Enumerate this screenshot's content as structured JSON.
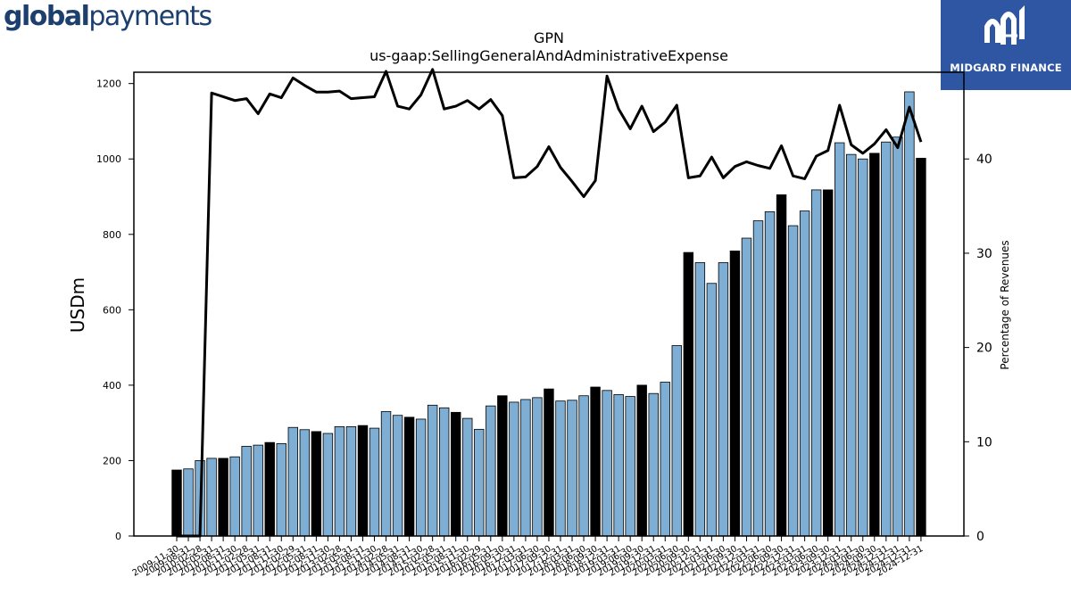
{
  "branding": {
    "left_logo_bold": "global",
    "left_logo_regular": "payments",
    "right_logo_text": "MIDGARD FINANCE",
    "right_logo_bg": "#2e56a3"
  },
  "chart_data": {
    "type": "bar",
    "title": "GPN",
    "subtitle": "us-gaap:SellingGeneralAndAdministrativeExpense",
    "ylabel": "USDm",
    "y2label": "Percentage of Revenues",
    "ylim": [
      0,
      1230
    ],
    "y2lim": [
      0,
      49.2
    ],
    "yticks": [
      "0",
      "200",
      "400",
      "600",
      "800",
      "1000",
      "1200"
    ],
    "y2ticks": [
      "0",
      "10",
      "20",
      "30",
      "40"
    ],
    "colors": {
      "quarterly": "#7eaed4",
      "annual": "#000000",
      "line": "#000000"
    },
    "categories": [
      "2009-11-30",
      "2009-08-31",
      "2010-02-28",
      "2010-05-31",
      "2010-08-31",
      "2010-11-30",
      "2011-02-28",
      "2011-05-31",
      "2011-08-31",
      "2011-11-30",
      "2012-02-29",
      "2012-05-31",
      "2012-08-31",
      "2012-11-30",
      "2013-02-28",
      "2013-05-31",
      "2013-08-31",
      "2013-11-30",
      "2014-02-28",
      "2014-05-31",
      "2014-08-31",
      "2014-11-30",
      "2015-02-28",
      "2015-05-31",
      "2015-08-31",
      "2015-11-30",
      "2016-02-29",
      "2016-05-31",
      "2016-09-30",
      "2016-12-31",
      "2017-03-31",
      "2017-06-30",
      "2017-09-30",
      "2017-12-31",
      "2018-03-31",
      "2018-06-30",
      "2018-09-30",
      "2018-12-31",
      "2019-03-31",
      "2019-06-30",
      "2019-09-30",
      "2019-12-31",
      "2020-03-31",
      "2020-06-30",
      "2020-09-30",
      "2020-12-31",
      "2021-03-31",
      "2021-06-30",
      "2021-09-30",
      "2021-12-31",
      "2022-03-31",
      "2022-06-30",
      "2022-09-30",
      "2022-12-31",
      "2023-03-31",
      "2023-06-30",
      "2023-09-30",
      "2023-12-31",
      "2024-03-31",
      "2024-06-30",
      "2024-09-30",
      "2024-12-31",
      "2024-12-31",
      "2024-12-31",
      "2024-12-31"
    ],
    "annual_flags": [
      1,
      0,
      0,
      0,
      1,
      0,
      0,
      0,
      1,
      0,
      0,
      0,
      1,
      0,
      0,
      0,
      1,
      0,
      0,
      0,
      1,
      0,
      0,
      0,
      1,
      0,
      0,
      0,
      1,
      0,
      0,
      0,
      1,
      0,
      0,
      0,
      1,
      0,
      0,
      0,
      1,
      0,
      0,
      0,
      1,
      0,
      0,
      0,
      1,
      0,
      0,
      0,
      1,
      0,
      0,
      0,
      1,
      0,
      0,
      0,
      1,
      0,
      0,
      0,
      1
    ],
    "series": [
      {
        "name": "SellingGeneralAndAdministrativeExpense",
        "axis": "left",
        "values": [
          175,
          178,
          200,
          206,
          206,
          210,
          238,
          241,
          248,
          245,
          288,
          282,
          277,
          272,
          290,
          290,
          293,
          286,
          330,
          320,
          315,
          310,
          347,
          340,
          328,
          312,
          283,
          345,
          372,
          355,
          362,
          367,
          390,
          358,
          360,
          372,
          395,
          386,
          375,
          370,
          400,
          378,
          408,
          505,
          752,
          725,
          670,
          725,
          756,
          790,
          836,
          860,
          905,
          823,
          862,
          918,
          918,
          1043,
          1012,
          1000,
          1015,
          1045,
          1058,
          1178,
          1002
        ]
      },
      {
        "name": "Percentage of Revenues",
        "axis": "right",
        "values": [
          0,
          0,
          0,
          47.0,
          46.6,
          46.2,
          46.4,
          44.8,
          46.9,
          46.5,
          48.6,
          47.8,
          47.1,
          47.1,
          47.2,
          46.4,
          46.5,
          46.6,
          49.3,
          45.6,
          45.3,
          46.8,
          49.5,
          45.3,
          45.6,
          46.2,
          45.3,
          46.3,
          44.6,
          38.0,
          38.1,
          39.2,
          41.3,
          39.1,
          37.6,
          36.0,
          37.7,
          48.8,
          45.3,
          43.2,
          45.6,
          42.9,
          43.9,
          45.7,
          38.0,
          38.2,
          40.2,
          38.0,
          39.2,
          39.7,
          39.3,
          39.0,
          41.4,
          38.2,
          37.9,
          40.3,
          40.9,
          45.7,
          41.5,
          40.6,
          41.6,
          43.1,
          41.2,
          45.5,
          41.8
        ]
      }
    ],
    "legend": "none",
    "grid": false
  }
}
